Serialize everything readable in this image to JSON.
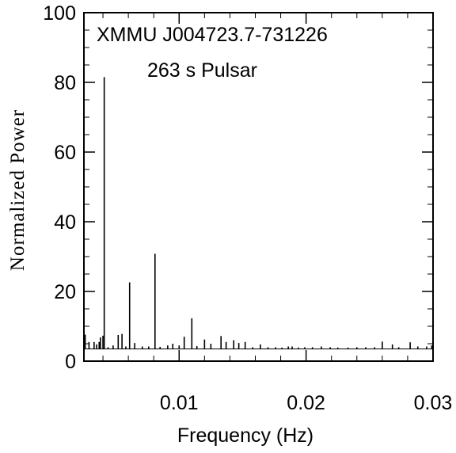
{
  "chart_data": {
    "type": "line",
    "title": "",
    "xlabel": "Frequency (Hz)",
    "ylabel": "Normalized Power",
    "xlim": [
      0.0025,
      0.03
    ],
    "ylim": [
      0,
      100
    ],
    "xticks": [
      0.01,
      0.02,
      0.03
    ],
    "xtick_labels": [
      "0.01",
      "0.02",
      "0.03"
    ],
    "yticks": [
      0,
      20,
      40,
      60,
      80,
      100
    ],
    "ytick_labels": [
      "0",
      "20",
      "40",
      "60",
      "80",
      "100"
    ],
    "baseline": 3.5,
    "annotations": [
      "XMMU J004723.7-731226",
      "263 s Pulsar"
    ],
    "series": [
      {
        "x": [
          0.0026,
          0.0029,
          0.0033,
          0.0035,
          0.0037,
          0.0038,
          0.004,
          0.0041,
          0.0044,
          0.0048,
          0.0052,
          0.0055,
          0.0058,
          0.0061,
          0.0065,
          0.0071,
          0.0076,
          0.0081,
          0.0085,
          0.0091,
          0.0095,
          0.01,
          0.0104,
          0.011,
          0.0114,
          0.012,
          0.0125,
          0.0133,
          0.0137,
          0.0143,
          0.0147,
          0.0152,
          0.0158,
          0.0164,
          0.017,
          0.0176,
          0.0181,
          0.0186,
          0.0189,
          0.0194,
          0.0199,
          0.0205,
          0.0212,
          0.0219,
          0.0225,
          0.0233,
          0.024,
          0.0247,
          0.0254,
          0.026,
          0.0268,
          0.0273,
          0.0282,
          0.0288,
          0.0295,
          0.0299
        ],
        "y": [
          7.6,
          5.5,
          5.5,
          4.8,
          5.5,
          6.8,
          7.3,
          81.5,
          4.0,
          4.5,
          7.5,
          7.8,
          4.2,
          22.6,
          5.2,
          4.2,
          4.2,
          30.8,
          4.1,
          4.5,
          5.0,
          4.5,
          7.0,
          12.3,
          4.3,
          6.2,
          5.0,
          7.2,
          5.5,
          6.0,
          5.2,
          5.5,
          4.0,
          4.8,
          4.0,
          4.0,
          3.9,
          4.2,
          4.2,
          3.9,
          4.0,
          4.0,
          4.2,
          4.0,
          3.9,
          3.9,
          4.0,
          4.0,
          4.0,
          5.6,
          4.8,
          4.0,
          5.4,
          4.2,
          4.2,
          4.5
        ]
      }
    ]
  }
}
